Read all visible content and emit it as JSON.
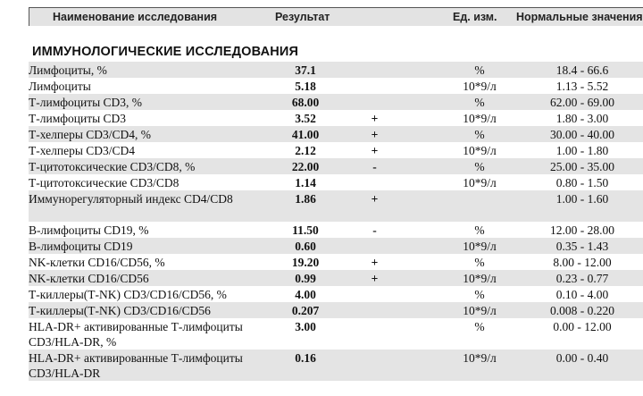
{
  "table_header": {
    "name": "Наименование исследования",
    "result": "Результат",
    "unit": "Ед. изм.",
    "norm": "Нормальные значения"
  },
  "section_title": "ИММУНОЛОГИЧЕСКИЕ ИССЛЕДОВАНИЯ",
  "rows": [
    {
      "name": "Лимфоциты, %",
      "result": "37.1",
      "flag": "",
      "unit": "%",
      "norm": "18.4 - 66.6"
    },
    {
      "name": "Лимфоциты",
      "result": "5.18",
      "flag": "",
      "unit": "10*9/л",
      "norm": "1.13 - 5.52"
    },
    {
      "name": "Т-лимфоциты CD3, %",
      "result": "68.00",
      "flag": "",
      "unit": "%",
      "norm": "62.00 - 69.00"
    },
    {
      "name": "Т-лимфоциты CD3",
      "result": "3.52",
      "flag": "+",
      "unit": "10*9/л",
      "norm": "1.80 - 3.00"
    },
    {
      "name": "Т-хелперы CD3/CD4, %",
      "result": "41.00",
      "flag": "+",
      "unit": "%",
      "norm": "30.00 - 40.00"
    },
    {
      "name": "Т-хелперы CD3/CD4",
      "result": "2.12",
      "flag": "+",
      "unit": "10*9/л",
      "norm": "1.00 - 1.80"
    },
    {
      "name": "Т-цитотоксические CD3/CD8, %",
      "result": "22.00",
      "flag": "-",
      "unit": "%",
      "norm": "25.00 - 35.00"
    },
    {
      "name": "Т-цитотоксические CD3/CD8",
      "result": "1.14",
      "flag": "",
      "unit": "10*9/л",
      "norm": "0.80 - 1.50"
    },
    {
      "name": "Иммунорегуляторный индекс CD4/CD8",
      "result": "1.86",
      "flag": "+",
      "unit": "",
      "norm": "1.00 - 1.60"
    },
    {
      "name": "В-лимфоциты CD19, %",
      "result": "11.50",
      "flag": "-",
      "unit": "%",
      "norm": "12.00 - 28.00"
    },
    {
      "name": "В-лимфоциты CD19",
      "result": "0.60",
      "flag": "",
      "unit": "10*9/л",
      "norm": "0.35 - 1.43"
    },
    {
      "name": "NK-клетки CD16/CD56, %",
      "result": "19.20",
      "flag": "+",
      "unit": "%",
      "norm": "8.00 - 12.00"
    },
    {
      "name": "NK-клетки CD16/CD56",
      "result": "0.99",
      "flag": "+",
      "unit": "10*9/л",
      "norm": "0.23 - 0.77"
    },
    {
      "name": "Т-киллеры(Т-NK) CD3/CD16/CD56, %",
      "result": "4.00",
      "flag": "",
      "unit": "%",
      "norm": "0.10 - 4.00"
    },
    {
      "name": "Т-киллеры(Т-NK) CD3/CD16/CD56",
      "result": "0.207",
      "flag": "",
      "unit": "10*9/л",
      "norm": "0.008 - 0.220"
    },
    {
      "name": "HLA-DR+ активированные Т-лимфоциты CD3/HLA-DR, %",
      "result": "3.00",
      "flag": "",
      "unit": "%",
      "norm": "0.00 - 12.00"
    },
    {
      "name": "HLA-DR+ активированные Т-лимфоциты CD3/HLA-DR",
      "result": "0.16",
      "flag": "",
      "unit": "10*9/л",
      "norm": "0.00 - 0.40"
    }
  ]
}
